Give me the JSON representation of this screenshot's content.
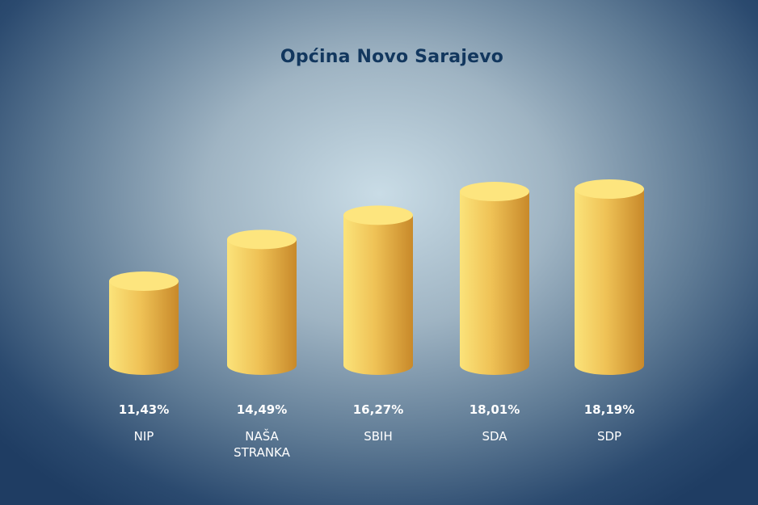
{
  "chart_data": {
    "type": "bar",
    "title": "Općina Novo Sarajevo",
    "categories": [
      "NIP",
      "NAŠA\nSTRANKA",
      "SBIH",
      "SDA",
      "SDP"
    ],
    "values": [
      11.43,
      14.49,
      16.27,
      18.01,
      18.19
    ],
    "value_labels": [
      "11,43%",
      "14,49%",
      "16,27%",
      "18,01%",
      "18,19%"
    ],
    "xlabel": "",
    "ylabel": "",
    "grid": false,
    "bar_style": "cylinder",
    "colors": {
      "bar_light": "#fbe37a",
      "bar_dark": "#c8892a",
      "top": "#fde57e",
      "title": "#12375e",
      "text": "#ffffff"
    }
  }
}
